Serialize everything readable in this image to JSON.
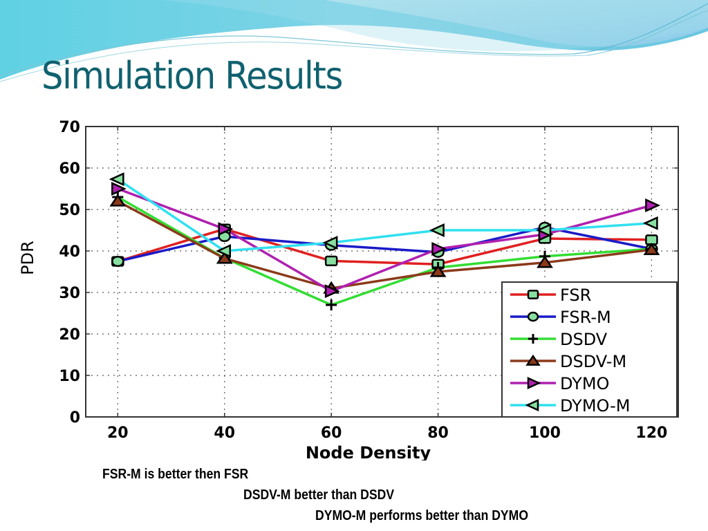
{
  "slide": {
    "title": "Simulation Results",
    "theme_colors": {
      "title": "#10616f",
      "wave_light": "#7fd8e8",
      "wave_mid": "#4cc3dc",
      "wave_blue": "#8fc6e6"
    }
  },
  "captions": [
    "FSR-M is better then FSR",
    "DSDV-M better than DSDV",
    "DYMO-M performs better than DYMO"
  ],
  "chart_data": {
    "type": "line",
    "title": "",
    "xlabel": "Node Density",
    "ylabel": "PDR",
    "x": [
      20,
      40,
      60,
      80,
      100,
      120
    ],
    "xlim": [
      14,
      125
    ],
    "ylim": [
      0,
      70
    ],
    "xticks": [
      "20",
      "40",
      "60",
      "80",
      "100",
      "120"
    ],
    "yticks": [
      "0",
      "10",
      "20",
      "30",
      "40",
      "50",
      "60",
      "70"
    ],
    "grid": true,
    "legend_position": "bottom-right",
    "series": [
      {
        "name": "FSR",
        "color": "#e02020",
        "marker": "square",
        "values": [
          37.5,
          45.3,
          37.6,
          36.8,
          43.0,
          42.7
        ]
      },
      {
        "name": "FSR-M",
        "color": "#1a1ac8",
        "marker": "circle",
        "values": [
          37.5,
          43.5,
          41.4,
          39.7,
          45.7,
          40.5
        ]
      },
      {
        "name": "DSDV",
        "color": "#33dd33",
        "marker": "plus",
        "values": [
          53.0,
          38.3,
          27.0,
          36.0,
          38.7,
          40.5
        ]
      },
      {
        "name": "DSDV-M",
        "color": "#8b3a1a",
        "marker": "triangle-up",
        "values": [
          52.0,
          38.2,
          31.0,
          35.0,
          37.2,
          40.3
        ]
      },
      {
        "name": "DYMO",
        "color": "#b020b0",
        "marker": "triangle-right",
        "values": [
          55.0,
          45.3,
          30.3,
          40.5,
          44.0,
          51.0
        ]
      },
      {
        "name": "DYMO-M",
        "color": "#30e0f0",
        "marker": "triangle-left",
        "values": [
          57.3,
          40.0,
          42.0,
          45.0,
          45.0,
          46.7
        ]
      }
    ],
    "marker_fill": "#88e0a0"
  }
}
